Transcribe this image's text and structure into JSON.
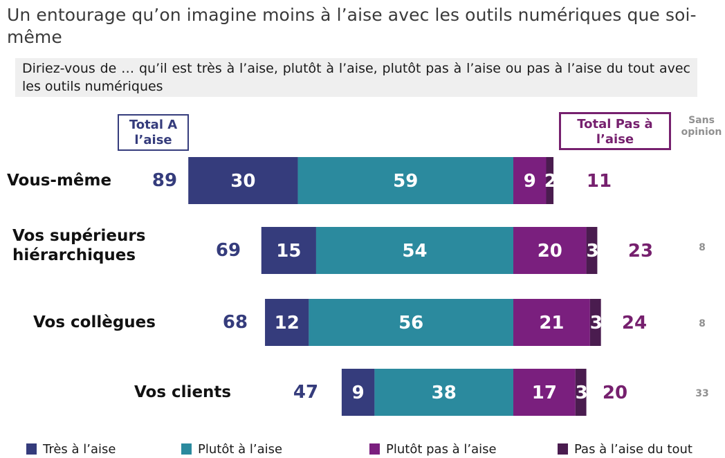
{
  "title": "Un entourage qu’on imagine moins à l’aise avec les outils numériques que soi-même",
  "question": "Diriez-vous de … qu’il est très à l’aise, plutôt à l’aise, plutôt pas à l’aise ou pas à l’aise du tout avec les outils numériques",
  "headers": {
    "total_a_laise": "Total A l’aise",
    "total_pas_a_laise": "Total Pas à l’aise",
    "sans_opinion": "Sans opinion"
  },
  "colors": {
    "tres": "#353c7c",
    "plutot": "#2b8a9e",
    "plutot_pas": "#7a1f7e",
    "pas_du_tout": "#4a1c4f",
    "total_left": "#353c7c",
    "total_right": "#76206e",
    "sans_opinion": "#909090"
  },
  "chart_data": {
    "type": "bar",
    "orientation": "horizontal",
    "stacked": "diverging",
    "categories": [
      "Vous-même",
      "Vos supérieurs hiérarchiques",
      "Vos collègues",
      "Vos clients"
    ],
    "series": [
      {
        "name": "Très à l’aise",
        "values": [
          30,
          15,
          12,
          9
        ]
      },
      {
        "name": "Plutôt à l’aise",
        "values": [
          59,
          54,
          56,
          38
        ]
      },
      {
        "name": "Plutôt pas à l’aise",
        "values": [
          9,
          20,
          21,
          17
        ]
      },
      {
        "name": "Pas à l’aise du tout",
        "values": [
          2,
          3,
          3,
          3
        ]
      }
    ],
    "total_a_laise": [
      89,
      69,
      68,
      47
    ],
    "total_pas_a_laise": [
      11,
      23,
      24,
      20
    ],
    "sans_opinion": [
      "",
      "8",
      "8",
      "33"
    ],
    "legend": {
      "position": "bottom",
      "labels": [
        "Très à l’aise",
        "Plutôt à l’aise",
        "Plutôt pas à l’aise",
        "Pas à l’aise du tout"
      ]
    }
  }
}
